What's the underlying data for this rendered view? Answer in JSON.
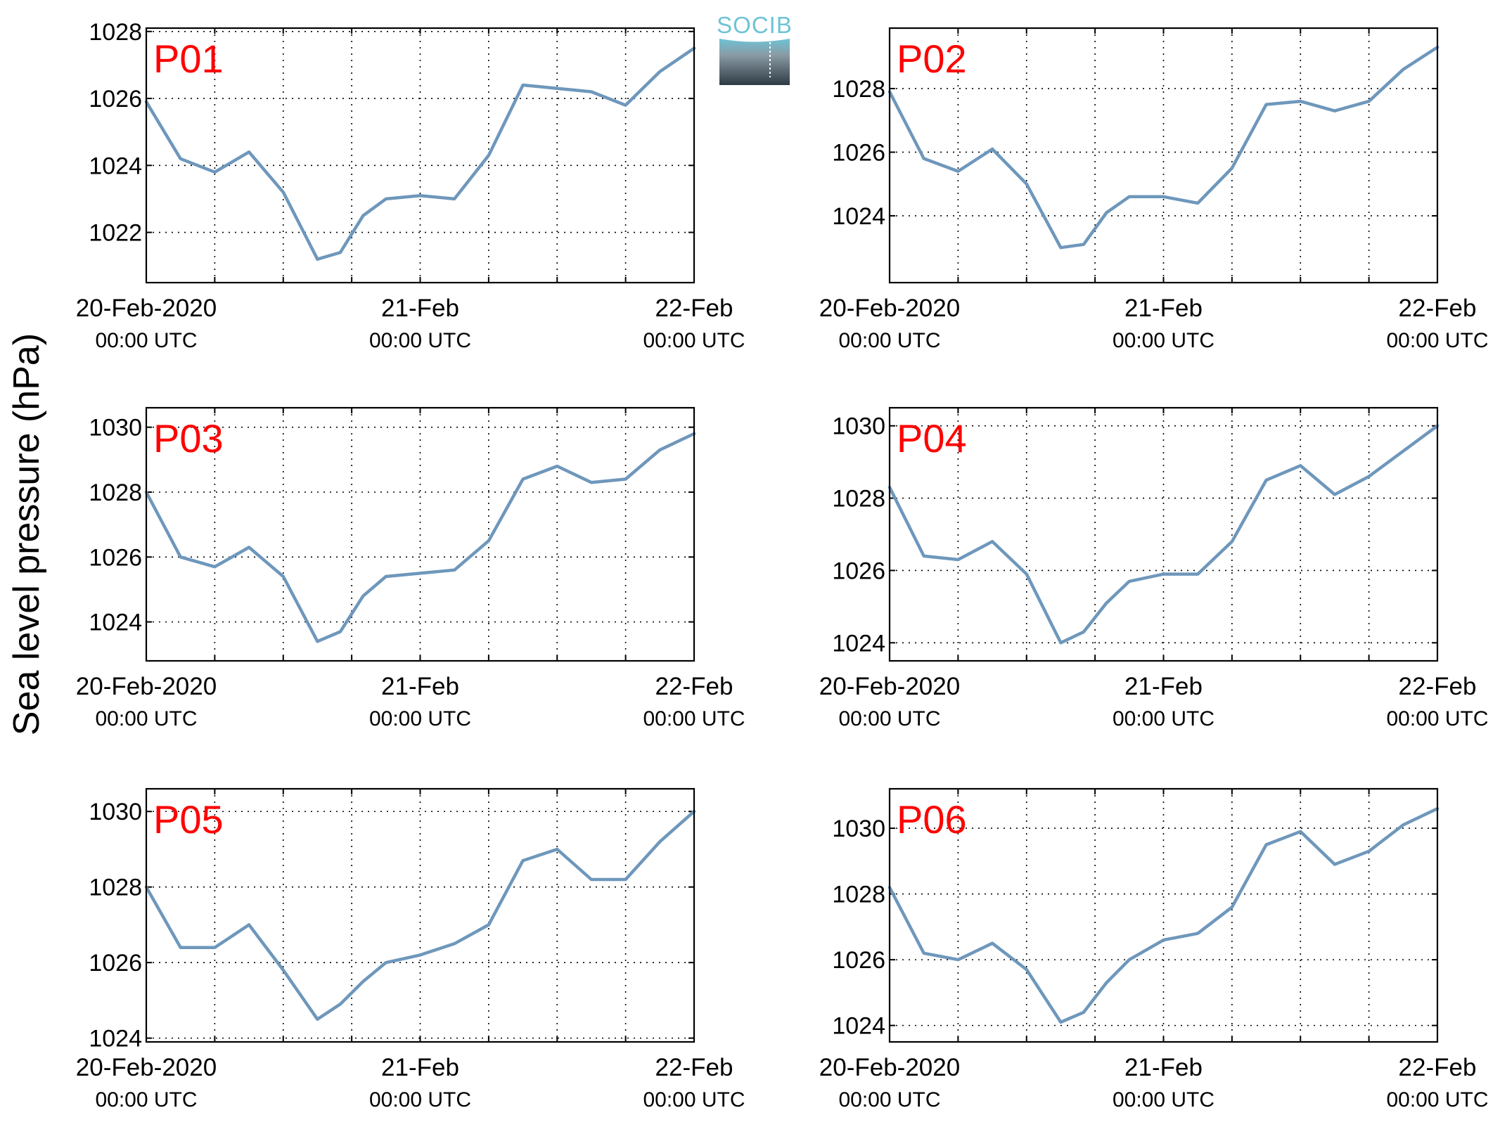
{
  "figure": {
    "ylabel": "Sea level pressure (hPa)",
    "logo_text": "SOCIB",
    "colors": {
      "line": "#6e97bb",
      "panel_label": "#ff0000",
      "axis": "#000000",
      "logo_top": "#6ec3d6",
      "logo_bottom": "#2e3b44"
    }
  },
  "chart_data": [
    {
      "type": "line",
      "title": "P01",
      "x_ticks": [
        {
          "date": "20-Feb-2020",
          "time": "00:00 UTC"
        },
        {
          "date": "21-Feb",
          "time": "00:00 UTC"
        },
        {
          "date": "22-Feb",
          "time": "00:00 UTC"
        }
      ],
      "xlim": [
        "2020-02-20 00:00",
        "2020-02-22 00:00"
      ],
      "ylim": [
        1020.5,
        1028.1
      ],
      "yticks": [
        1022,
        1024,
        1026,
        1028
      ],
      "grid": true,
      "x_hours": [
        0,
        3,
        6,
        9,
        12,
        15,
        17,
        19,
        21,
        24,
        27,
        30,
        33,
        36,
        39,
        42,
        45,
        48
      ],
      "y_hpa": [
        1025.9,
        1024.2,
        1023.8,
        1024.4,
        1023.2,
        1021.2,
        1021.4,
        1022.5,
        1023.0,
        1023.1,
        1023.0,
        1024.3,
        1026.4,
        1026.3,
        1026.2,
        1025.8,
        1026.8,
        1027.5
      ]
    },
    {
      "type": "line",
      "title": "P02",
      "x_ticks": [
        {
          "date": "20-Feb-2020",
          "time": "00:00 UTC"
        },
        {
          "date": "21-Feb",
          "time": "00:00 UTC"
        },
        {
          "date": "22-Feb",
          "time": "00:00 UTC"
        }
      ],
      "xlim": [
        "2020-02-20 00:00",
        "2020-02-22 00:00"
      ],
      "ylim": [
        1021.9,
        1029.9
      ],
      "yticks": [
        1024,
        1026,
        1028
      ],
      "grid": true,
      "x_hours": [
        0,
        3,
        6,
        9,
        12,
        15,
        17,
        19,
        21,
        24,
        27,
        30,
        33,
        36,
        39,
        42,
        45,
        48
      ],
      "y_hpa": [
        1027.9,
        1025.8,
        1025.4,
        1026.1,
        1025.0,
        1023.0,
        1023.1,
        1024.1,
        1024.6,
        1024.6,
        1024.4,
        1025.5,
        1027.5,
        1027.6,
        1027.3,
        1027.6,
        1028.6,
        1029.3
      ]
    },
    {
      "type": "line",
      "title": "P03",
      "x_ticks": [
        {
          "date": "20-Feb-2020",
          "time": "00:00 UTC"
        },
        {
          "date": "21-Feb",
          "time": "00:00 UTC"
        },
        {
          "date": "22-Feb",
          "time": "00:00 UTC"
        }
      ],
      "xlim": [
        "2020-02-20 00:00",
        "2020-02-22 00:00"
      ],
      "ylim": [
        1022.8,
        1030.6
      ],
      "yticks": [
        1024,
        1026,
        1028,
        1030
      ],
      "grid": true,
      "x_hours": [
        0,
        3,
        6,
        9,
        12,
        15,
        17,
        19,
        21,
        24,
        27,
        30,
        33,
        36,
        39,
        42,
        45,
        48
      ],
      "y_hpa": [
        1028.0,
        1026.0,
        1025.7,
        1026.3,
        1025.4,
        1023.4,
        1023.7,
        1024.8,
        1025.4,
        1025.5,
        1025.6,
        1026.5,
        1028.4,
        1028.8,
        1028.3,
        1028.4,
        1029.3,
        1029.8
      ]
    },
    {
      "type": "line",
      "title": "P04",
      "x_ticks": [
        {
          "date": "20-Feb-2020",
          "time": "00:00 UTC"
        },
        {
          "date": "21-Feb",
          "time": "00:00 UTC"
        },
        {
          "date": "22-Feb",
          "time": "00:00 UTC"
        }
      ],
      "xlim": [
        "2020-02-20 00:00",
        "2020-02-22 00:00"
      ],
      "ylim": [
        1023.5,
        1030.5
      ],
      "yticks": [
        1024,
        1026,
        1028,
        1030
      ],
      "grid": true,
      "x_hours": [
        0,
        3,
        6,
        9,
        12,
        15,
        17,
        19,
        21,
        24,
        27,
        30,
        33,
        36,
        39,
        42,
        45,
        48
      ],
      "y_hpa": [
        1028.3,
        1026.4,
        1026.3,
        1026.8,
        1025.9,
        1024.0,
        1024.3,
        1025.1,
        1025.7,
        1025.9,
        1025.9,
        1026.8,
        1028.5,
        1028.9,
        1028.1,
        1028.6,
        1029.3,
        1030.0
      ]
    },
    {
      "type": "line",
      "title": "P05",
      "x_ticks": [
        {
          "date": "20-Feb-2020",
          "time": "00:00 UTC"
        },
        {
          "date": "21-Feb",
          "time": "00:00 UTC"
        },
        {
          "date": "22-Feb",
          "time": "00:00 UTC"
        }
      ],
      "xlim": [
        "2020-02-20 00:00",
        "2020-02-22 00:00"
      ],
      "ylim": [
        1023.9,
        1030.6
      ],
      "yticks": [
        1024,
        1026,
        1028,
        1030
      ],
      "grid": true,
      "x_hours": [
        0,
        3,
        6,
        9,
        12,
        15,
        17,
        19,
        21,
        24,
        27,
        30,
        33,
        36,
        39,
        42,
        45,
        48
      ],
      "y_hpa": [
        1028.0,
        1026.4,
        1026.4,
        1027.0,
        1025.8,
        1024.5,
        1024.9,
        1025.5,
        1026.0,
        1026.2,
        1026.5,
        1027.0,
        1028.7,
        1029.0,
        1028.2,
        1028.2,
        1029.2,
        1030.0
      ]
    },
    {
      "type": "line",
      "title": "P06",
      "x_ticks": [
        {
          "date": "20-Feb-2020",
          "time": "00:00 UTC"
        },
        {
          "date": "21-Feb",
          "time": "00:00 UTC"
        },
        {
          "date": "22-Feb",
          "time": "00:00 UTC"
        }
      ],
      "xlim": [
        "2020-02-20 00:00",
        "2020-02-22 00:00"
      ],
      "ylim": [
        1023.5,
        1031.2
      ],
      "yticks": [
        1024,
        1026,
        1028,
        1030
      ],
      "grid": true,
      "x_hours": [
        0,
        3,
        6,
        9,
        12,
        15,
        17,
        19,
        21,
        24,
        27,
        30,
        33,
        36,
        39,
        42,
        45,
        48
      ],
      "y_hpa": [
        1028.2,
        1026.2,
        1026.0,
        1026.5,
        1025.7,
        1024.1,
        1024.4,
        1025.3,
        1026.0,
        1026.6,
        1026.8,
        1027.6,
        1029.5,
        1029.9,
        1028.9,
        1029.3,
        1030.1,
        1030.6
      ]
    }
  ]
}
